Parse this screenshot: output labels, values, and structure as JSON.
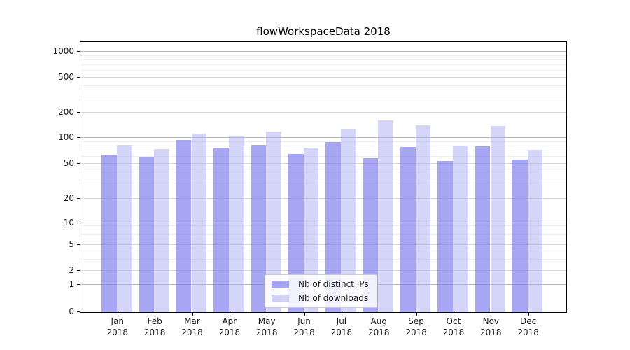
{
  "title": "flowWorkspaceData 2018",
  "chart_data": {
    "type": "bar",
    "title": "flowWorkspaceData 2018",
    "categories": [
      "Jan",
      "Feb",
      "Mar",
      "Apr",
      "May",
      "Jun",
      "Jul",
      "Aug",
      "Sep",
      "Oct",
      "Nov",
      "Dec"
    ],
    "year_label": "2018",
    "series": [
      {
        "name": "Nb of distinct IPs",
        "color": "rgba(132,132,238,0.72)",
        "values": [
          63,
          59,
          92,
          75,
          81,
          64,
          88,
          57,
          77,
          53,
          79,
          55
        ]
      },
      {
        "name": "Nb of downloads",
        "color": "rgba(178,178,242,0.55)",
        "values": [
          81,
          73,
          111,
          103,
          116,
          75,
          126,
          158,
          138,
          80,
          135,
          72
        ]
      }
    ],
    "yscale": "symlog",
    "y_ticks": [
      0,
      1,
      2,
      5,
      10,
      20,
      50,
      100,
      200,
      500,
      1000
    ],
    "ylim": [
      0,
      1300
    ],
    "xlabel": "",
    "ylabel": "",
    "grid": true,
    "legend_position": "lower center"
  },
  "colors": {
    "grid_major": "#b4b4b4",
    "grid_mid": "#d7d7d7",
    "grid_minor": "#ededed",
    "spine": "#000000",
    "text": "#1a1a1a",
    "background": "#ffffff"
  }
}
